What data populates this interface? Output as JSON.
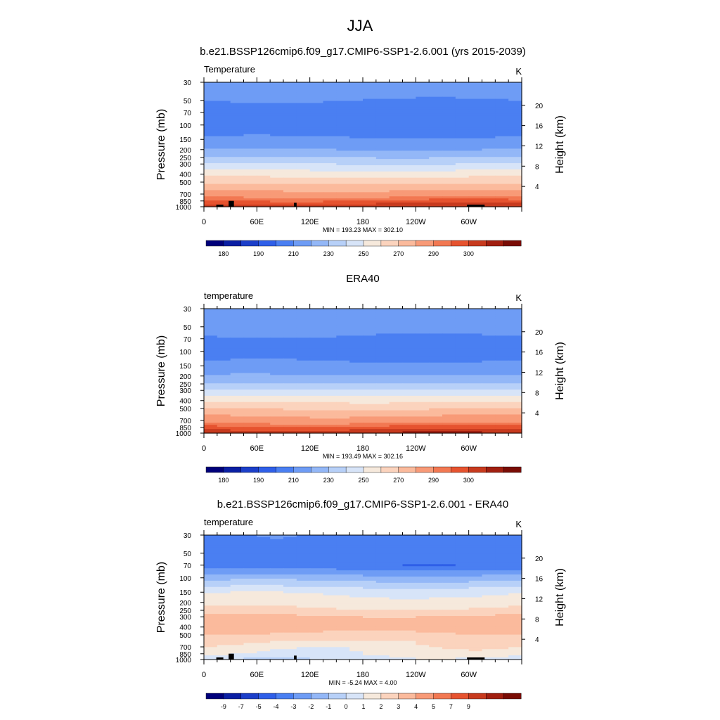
{
  "figure": {
    "title": "JJA"
  },
  "colors": {
    "abs_palette": [
      "#00007a",
      "#0a1fa3",
      "#1c3fc9",
      "#2f5fe8",
      "#4a7ff2",
      "#6e9cf5",
      "#93b7f7",
      "#b7d0f8",
      "#d7e4f8",
      "#f6e9dc",
      "#fbd3bd",
      "#fbba9c",
      "#f89a77",
      "#f27852",
      "#e6532f",
      "#c73a1e",
      "#a11f10",
      "#790c05"
    ],
    "diff_palette": [
      "#00007a",
      "#0a1fa3",
      "#1c3fc9",
      "#2f5fe8",
      "#4a7ff2",
      "#6e9cf5",
      "#93b7f7",
      "#b7d0f8",
      "#d7e4f8",
      "#f6e9dc",
      "#fbd3bd",
      "#fbba9c",
      "#f89a77",
      "#f27852",
      "#e6532f",
      "#c73a1e",
      "#a11f10",
      "#790c05"
    ]
  },
  "chart_data": [
    {
      "type": "heatmap",
      "title": "b.e21.BSSP126cmip6.f09_g17.CMIP6-SSP1-2.6.001 (yrs 2015-2039)",
      "left_label": "Temperature",
      "units": "K",
      "ylabel": "Pressure (mb)",
      "ylabel_right": "Height (km)",
      "pressure_ticks": [
        "30",
        "50",
        "70",
        "100",
        "150",
        "200",
        "250",
        "300",
        "400",
        "500",
        "700",
        "850",
        "1000"
      ],
      "pressure_values": [
        30,
        50,
        70,
        100,
        150,
        200,
        250,
        300,
        400,
        500,
        700,
        850,
        1000
      ],
      "height_ticks": [
        4,
        8,
        12,
        16,
        20
      ],
      "xticks": [
        "0",
        "60E",
        "120E",
        "180",
        "120W",
        "60W"
      ],
      "xlim": [
        0,
        360
      ],
      "stats": "MIN = 193.23  MAX = 302.10",
      "min": 193.23,
      "max": 302.1,
      "colorbar_ticks": [
        "180",
        "190",
        "210",
        "230",
        "250",
        "270",
        "290",
        "300"
      ],
      "profile": [
        [
          30,
          205
        ],
        [
          50,
          200
        ],
        [
          70,
          196
        ],
        [
          100,
          195
        ],
        [
          150,
          201
        ],
        [
          200,
          210
        ],
        [
          250,
          220
        ],
        [
          300,
          230
        ],
        [
          400,
          246
        ],
        [
          500,
          258
        ],
        [
          700,
          275
        ],
        [
          850,
          286
        ],
        [
          1000,
          294
        ]
      ],
      "topography": [
        [
          14,
          22,
          1000
        ],
        [
          28,
          34,
          900
        ],
        [
          102,
          105,
          950
        ],
        [
          298,
          318,
          1000
        ]
      ]
    },
    {
      "type": "heatmap",
      "title": "ERA40",
      "left_label": "temperature",
      "units": "K",
      "ylabel": "Pressure (mb)",
      "ylabel_right": "Height (km)",
      "pressure_ticks": [
        "30",
        "50",
        "70",
        "100",
        "150",
        "200",
        "250",
        "300",
        "400",
        "500",
        "700",
        "850",
        "1000"
      ],
      "pressure_values": [
        30,
        50,
        70,
        100,
        150,
        200,
        250,
        300,
        400,
        500,
        700,
        850,
        1000
      ],
      "height_ticks": [
        4,
        8,
        12,
        16,
        20
      ],
      "xticks": [
        "0",
        "60E",
        "120E",
        "180",
        "120W",
        "60W"
      ],
      "xlim": [
        0,
        360
      ],
      "stats": "MIN = 193.49  MAX = 302.16",
      "min": 193.49,
      "max": 302.16,
      "colorbar_ticks": [
        "180",
        "190",
        "210",
        "230",
        "250",
        "270",
        "290",
        "300"
      ],
      "profile": [
        [
          30,
          207
        ],
        [
          50,
          203
        ],
        [
          70,
          199
        ],
        [
          100,
          196
        ],
        [
          150,
          202
        ],
        [
          200,
          211
        ],
        [
          250,
          221
        ],
        [
          300,
          231
        ],
        [
          400,
          247
        ],
        [
          500,
          259
        ],
        [
          700,
          276
        ],
        [
          850,
          287
        ],
        [
          1000,
          295
        ]
      ],
      "topography": []
    },
    {
      "type": "heatmap",
      "title": "b.e21.BSSP126cmip6.f09_g17.CMIP6-SSP1-2.6.001 - ERA40",
      "left_label": "temperature",
      "units": "K",
      "ylabel": "Pressure (mb)",
      "ylabel_right": "Height (km)",
      "pressure_ticks": [
        "30",
        "50",
        "70",
        "100",
        "150",
        "200",
        "250",
        "300",
        "400",
        "500",
        "700",
        "850",
        "1000"
      ],
      "pressure_values": [
        30,
        50,
        70,
        100,
        150,
        200,
        250,
        300,
        400,
        500,
        700,
        850,
        1000
      ],
      "height_ticks": [
        4,
        8,
        12,
        16,
        20
      ],
      "xticks": [
        "0",
        "60E",
        "120E",
        "180",
        "120W",
        "60W"
      ],
      "xlim": [
        0,
        360
      ],
      "stats": "MIN = -5.24  MAX =  4.00",
      "min": -5.24,
      "max": 4.0,
      "colorbar_ticks": [
        "-9",
        "-7",
        "-5",
        "-4",
        "-3",
        "-2",
        "-1",
        "0",
        "1",
        "2",
        "3",
        "4",
        "5",
        "7",
        "9"
      ],
      "profile": [
        [
          30,
          -3.2
        ],
        [
          50,
          -3.4
        ],
        [
          70,
          -3.8
        ],
        [
          100,
          -1.5
        ],
        [
          150,
          0.8
        ],
        [
          200,
          1.5
        ],
        [
          250,
          2.2
        ],
        [
          300,
          3.2
        ],
        [
          400,
          3.6
        ],
        [
          500,
          2.8
        ],
        [
          700,
          1.6
        ],
        [
          850,
          1.2
        ],
        [
          1000,
          0.3
        ]
      ],
      "topography": [
        [
          14,
          22,
          1000
        ],
        [
          28,
          34,
          900
        ],
        [
          102,
          105,
          950
        ],
        [
          298,
          318,
          1000
        ]
      ]
    }
  ]
}
